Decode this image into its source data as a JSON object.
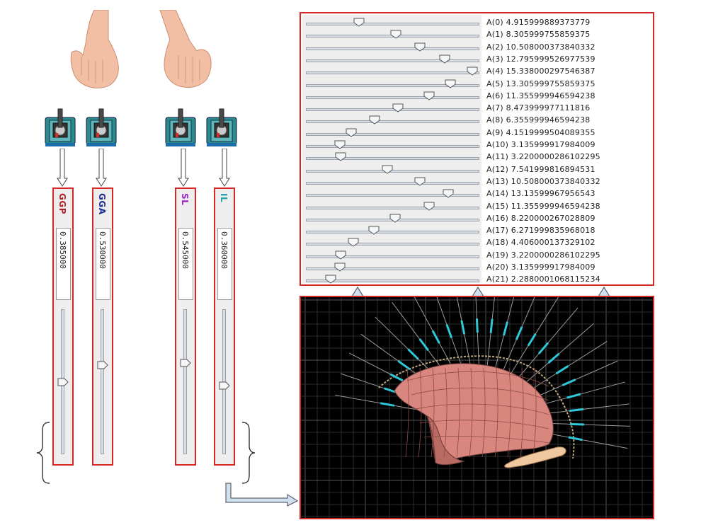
{
  "left_controls": {
    "panels": [
      {
        "id": "ggp",
        "title": "GGP",
        "title_color": "#b0202a",
        "value": "0.385000",
        "level": 0.385
      },
      {
        "id": "gga",
        "title": "GGA",
        "title_color": "#1a2d8c",
        "value": "0.530000",
        "level": 0.53
      },
      {
        "id": "sl",
        "title": "SL",
        "title_color": "#a020c0",
        "value": "0.545000",
        "level": 0.545
      },
      {
        "id": "il",
        "title": "IL",
        "title_color": "#20a0b0",
        "value": "0.360000",
        "level": 0.36
      }
    ],
    "icons": [
      "left-hand-icon",
      "right-hand-icon",
      "joystick-icon",
      "down-arrow-icon",
      "brace-icon"
    ]
  },
  "parameter_list": {
    "rows": [
      {
        "label": "A(0) 4.915999889373779",
        "value": 4.915999889373779
      },
      {
        "label": "A(1) 8.305999755859375",
        "value": 8.305999755859375
      },
      {
        "label": "A(2) 10.508000373840332",
        "value": 10.508000373840332
      },
      {
        "label": "A(3) 12.795999526977539",
        "value": 12.795999526977539
      },
      {
        "label": "A(4) 15.338000297546387",
        "value": 15.338000297546387
      },
      {
        "label": "A(5) 13.305999755859375",
        "value": 13.305999755859375
      },
      {
        "label": "A(6) 11.355999946594238",
        "value": 11.355999946594238
      },
      {
        "label": "A(7) 8.473999977111816",
        "value": 8.473999977111816
      },
      {
        "label": "A(8) 6.355999946594238",
        "value": 6.355999946594238
      },
      {
        "label": "A(9) 4.1519999504089355",
        "value": 4.1519999504089355
      },
      {
        "label": "A(10) 3.135999917984009",
        "value": 3.135999917984009
      },
      {
        "label": "A(11) 3.2200000286102295",
        "value": 3.2200000286102295
      },
      {
        "label": "A(12) 7.541999816894531",
        "value": 7.541999816894531
      },
      {
        "label": "A(13) 10.508000373840332",
        "value": 10.508000373840332
      },
      {
        "label": "A(14) 13.13599967956543",
        "value": 13.13599967956543
      },
      {
        "label": "A(15) 11.355999946594238",
        "value": 11.355999946594238
      },
      {
        "label": "A(16) 8.220000267028809",
        "value": 8.220000267028809
      },
      {
        "label": "A(17) 6.271999835968018",
        "value": 6.271999835968018
      },
      {
        "label": "A(18) 4.406000137329102",
        "value": 4.406000137329102
      },
      {
        "label": "A(19) 3.2200000286102295",
        "value": 3.2200000286102295
      },
      {
        "label": "A(20) 3.135999917984009",
        "value": 3.135999917984009
      },
      {
        "label": "A(21) 2.2880001068115234",
        "value": 2.2880001068115234
      }
    ]
  },
  "colors": {
    "panel_border": "#d72828",
    "view_background": "#000000",
    "tongue_fill": "#d9867e",
    "needle_color": "#2ec8d8",
    "arrow_fill": "#cfe0ee"
  }
}
